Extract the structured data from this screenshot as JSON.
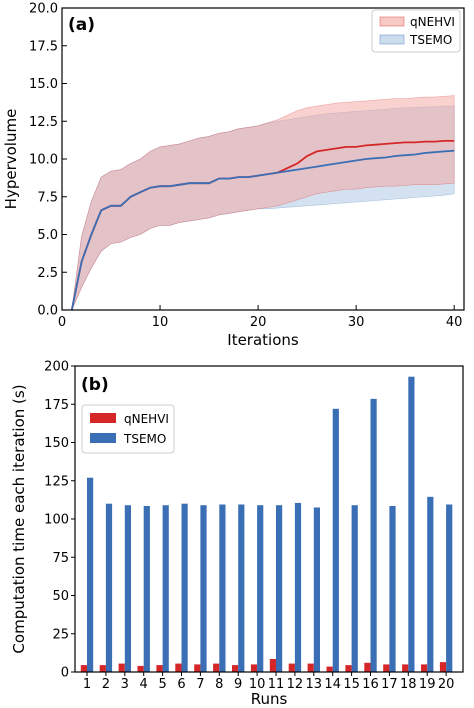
{
  "chart_data": [
    {
      "type": "line",
      "panel_label": "(a)",
      "xlabel": "Iterations",
      "ylabel": "Hypervolume",
      "xlim": [
        0,
        41
      ],
      "ylim": [
        0,
        20
      ],
      "xticks": [
        "0",
        "10",
        "20",
        "30",
        "40"
      ],
      "xtick_values": [
        0,
        10,
        20,
        30,
        40
      ],
      "yticks": [
        "0.0",
        "2.5",
        "5.0",
        "7.5",
        "10.0",
        "12.5",
        "15.0",
        "17.5",
        "20.0"
      ],
      "ytick_values": [
        0,
        2.5,
        5,
        7.5,
        10,
        12.5,
        15,
        17.5,
        20
      ],
      "legend_position": "upper-right",
      "x": [
        1,
        2,
        3,
        4,
        5,
        6,
        7,
        8,
        9,
        10,
        11,
        12,
        13,
        14,
        15,
        16,
        17,
        18,
        19,
        20,
        21,
        22,
        23,
        24,
        25,
        26,
        27,
        28,
        29,
        30,
        31,
        32,
        33,
        34,
        35,
        36,
        37,
        38,
        39,
        40
      ],
      "series": [
        {
          "name": "qNEHVI",
          "color": "#d62728",
          "band_color": "#f4a6a0",
          "mean": [
            0.0,
            3.2,
            5.0,
            6.6,
            6.9,
            6.9,
            7.5,
            7.8,
            8.1,
            8.2,
            8.2,
            8.3,
            8.4,
            8.4,
            8.4,
            8.7,
            8.7,
            8.8,
            8.8,
            8.9,
            9.0,
            9.1,
            9.4,
            9.7,
            10.2,
            10.5,
            10.6,
            10.7,
            10.8,
            10.8,
            10.9,
            10.95,
            11.0,
            11.05,
            11.1,
            11.1,
            11.15,
            11.15,
            11.2,
            11.2
          ],
          "lower": [
            0.0,
            1.5,
            2.8,
            3.9,
            4.4,
            4.5,
            4.8,
            5.0,
            5.4,
            5.6,
            5.6,
            5.8,
            5.9,
            6.0,
            6.1,
            6.3,
            6.4,
            6.5,
            6.6,
            6.7,
            6.8,
            6.9,
            7.1,
            7.3,
            7.5,
            7.7,
            7.8,
            7.9,
            8.0,
            8.0,
            8.1,
            8.15,
            8.2,
            8.2,
            8.25,
            8.3,
            8.3,
            8.3,
            8.35,
            8.4
          ],
          "upper": [
            0.0,
            4.9,
            7.2,
            8.8,
            9.2,
            9.3,
            9.7,
            10.0,
            10.5,
            10.8,
            10.9,
            11.0,
            11.2,
            11.4,
            11.5,
            11.7,
            11.8,
            12.0,
            12.1,
            12.2,
            12.4,
            12.6,
            12.9,
            13.2,
            13.4,
            13.5,
            13.6,
            13.7,
            13.75,
            13.8,
            13.85,
            13.9,
            13.95,
            14.0,
            14.0,
            14.05,
            14.1,
            14.1,
            14.15,
            14.2
          ]
        },
        {
          "name": "TSEMO",
          "color": "#3a6fb5",
          "band_color": "#a9c4e4",
          "mean": [
            0.0,
            3.2,
            5.0,
            6.6,
            6.9,
            6.9,
            7.5,
            7.8,
            8.1,
            8.2,
            8.2,
            8.3,
            8.4,
            8.4,
            8.4,
            8.7,
            8.7,
            8.8,
            8.8,
            8.9,
            9.0,
            9.1,
            9.2,
            9.3,
            9.4,
            9.5,
            9.6,
            9.7,
            9.8,
            9.9,
            10.0,
            10.05,
            10.1,
            10.2,
            10.25,
            10.3,
            10.4,
            10.45,
            10.5,
            10.55
          ],
          "lower": [
            0.0,
            1.5,
            2.8,
            3.9,
            4.4,
            4.5,
            4.8,
            5.0,
            5.4,
            5.6,
            5.6,
            5.8,
            5.9,
            6.0,
            6.1,
            6.3,
            6.4,
            6.5,
            6.6,
            6.7,
            6.7,
            6.75,
            6.8,
            6.85,
            6.9,
            6.95,
            7.0,
            7.05,
            7.1,
            7.15,
            7.2,
            7.25,
            7.3,
            7.35,
            7.4,
            7.45,
            7.5,
            7.55,
            7.6,
            7.7
          ],
          "upper": [
            0.0,
            4.9,
            7.2,
            8.8,
            9.2,
            9.3,
            9.7,
            10.0,
            10.5,
            10.8,
            10.9,
            11.0,
            11.2,
            11.4,
            11.5,
            11.7,
            11.8,
            12.0,
            12.1,
            12.2,
            12.4,
            12.5,
            12.6,
            12.7,
            12.8,
            12.9,
            13.0,
            13.05,
            13.1,
            13.15,
            13.2,
            13.25,
            13.3,
            13.35,
            13.4,
            13.4,
            13.45,
            13.45,
            13.5,
            13.5
          ]
        }
      ]
    },
    {
      "type": "bar",
      "panel_label": "(b)",
      "xlabel": "Runs",
      "ylabel": "Computation time each iteration (s)",
      "ylim": [
        0,
        200
      ],
      "yticks": [
        "0",
        "25",
        "50",
        "75",
        "100",
        "125",
        "150",
        "175",
        "200"
      ],
      "ytick_values": [
        0,
        25,
        50,
        75,
        100,
        125,
        150,
        175,
        200
      ],
      "categories": [
        "1",
        "2",
        "3",
        "4",
        "5",
        "6",
        "7",
        "8",
        "9",
        "10",
        "11",
        "12",
        "13",
        "14",
        "15",
        "16",
        "17",
        "18",
        "19",
        "20"
      ],
      "legend_position": "upper-left",
      "series": [
        {
          "name": "qNEHVI",
          "color": "#d62728",
          "values": [
            4.5,
            4.5,
            5.5,
            4.0,
            4.5,
            5.5,
            5.0,
            5.5,
            4.5,
            5.0,
            8.5,
            5.5,
            5.5,
            3.5,
            4.5,
            6.0,
            5.0,
            5.0,
            5.0,
            6.5
          ]
        },
        {
          "name": "TSEMO",
          "color": "#3a6fb5",
          "values": [
            127,
            110,
            109,
            108.5,
            109,
            110,
            109,
            109.5,
            109.5,
            109,
            109,
            110.5,
            107.5,
            172,
            109,
            178.5,
            108.5,
            193,
            114.5,
            109.5
          ]
        }
      ]
    }
  ]
}
